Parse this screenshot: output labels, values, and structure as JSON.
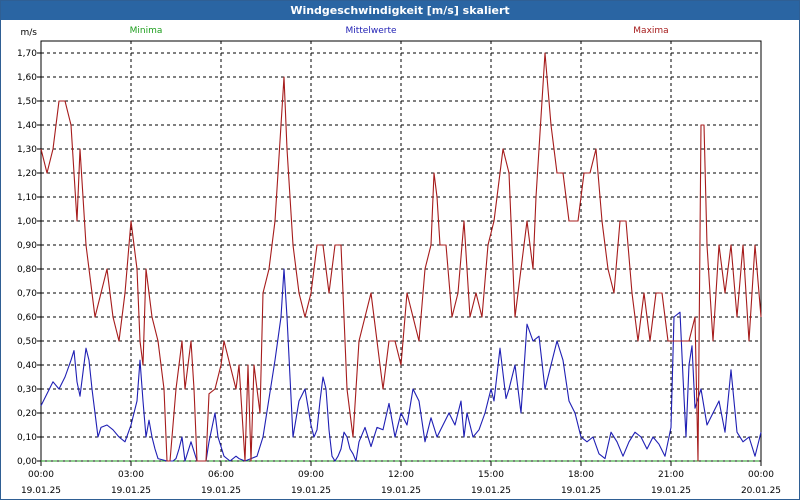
{
  "window": {
    "title": "Windgeschwindigkeit [m/s] skaliert"
  },
  "chart_data": {
    "type": "line",
    "title": "Windgeschwindigkeit [m/s] skaliert",
    "ylabel": "m/s",
    "ylim": [
      0,
      1.75
    ],
    "y_ticks": [
      "0,00",
      "0,10",
      "0,20",
      "0,30",
      "0,40",
      "0,50",
      "0,60",
      "0,70",
      "0,80",
      "0,90",
      "1,00",
      "1,10",
      "1,20",
      "1,30",
      "1,40",
      "1,50",
      "1,60",
      "1,70"
    ],
    "xlim_hours": [
      0,
      24
    ],
    "x_ticks": [
      {
        "time": "00:00",
        "date": "19.01.25"
      },
      {
        "time": "03:00",
        "date": "19.01.25"
      },
      {
        "time": "06:00",
        "date": "19.01.25"
      },
      {
        "time": "09:00",
        "date": "19.01.25"
      },
      {
        "time": "12:00",
        "date": "19.01.25"
      },
      {
        "time": "15:00",
        "date": "19.01.25"
      },
      {
        "time": "18:00",
        "date": "19.01.25"
      },
      {
        "time": "21:00",
        "date": "19.01.25"
      },
      {
        "time": "00:00",
        "date": "20.01.25"
      }
    ],
    "grid": true,
    "legend": "top",
    "series": [
      {
        "name": "Minima",
        "color": "#1e9e1e",
        "points": [
          [
            0,
            0
          ],
          [
            24,
            0
          ]
        ]
      },
      {
        "name": "Mittelwerte",
        "color": "#1f1fb4",
        "points": [
          [
            0,
            0.23
          ],
          [
            0.2,
            0.28
          ],
          [
            0.4,
            0.33
          ],
          [
            0.6,
            0.3
          ],
          [
            0.8,
            0.35
          ],
          [
            1.0,
            0.42
          ],
          [
            1.1,
            0.46
          ],
          [
            1.2,
            0.33
          ],
          [
            1.3,
            0.27
          ],
          [
            1.5,
            0.47
          ],
          [
            1.6,
            0.42
          ],
          [
            1.7,
            0.3
          ],
          [
            1.8,
            0.2
          ],
          [
            1.9,
            0.1
          ],
          [
            2.0,
            0.14
          ],
          [
            2.2,
            0.15
          ],
          [
            2.4,
            0.13
          ],
          [
            2.6,
            0.1
          ],
          [
            2.8,
            0.08
          ],
          [
            3.0,
            0.15
          ],
          [
            3.2,
            0.25
          ],
          [
            3.3,
            0.42
          ],
          [
            3.4,
            0.25
          ],
          [
            3.5,
            0.1
          ],
          [
            3.6,
            0.17
          ],
          [
            3.7,
            0.1
          ],
          [
            3.8,
            0.05
          ],
          [
            3.9,
            0.01
          ],
          [
            4.2,
            0.0
          ],
          [
            4.4,
            0.0
          ],
          [
            4.5,
            0.01
          ],
          [
            4.6,
            0.05
          ],
          [
            4.7,
            0.1
          ],
          [
            4.8,
            0.0
          ],
          [
            5.0,
            0.08
          ],
          [
            5.2,
            0.0
          ],
          [
            5.5,
            0.0
          ],
          [
            5.6,
            0.08
          ],
          [
            5.8,
            0.2
          ],
          [
            5.9,
            0.1
          ],
          [
            6.1,
            0.02
          ],
          [
            6.3,
            0.0
          ],
          [
            6.5,
            0.02
          ],
          [
            6.6,
            0.01
          ],
          [
            6.8,
            0.0
          ],
          [
            7.0,
            0.01
          ],
          [
            7.2,
            0.02
          ],
          [
            7.4,
            0.1
          ],
          [
            7.6,
            0.26
          ],
          [
            7.8,
            0.42
          ],
          [
            8.0,
            0.6
          ],
          [
            8.1,
            0.8
          ],
          [
            8.2,
            0.6
          ],
          [
            8.4,
            0.1
          ],
          [
            8.6,
            0.25
          ],
          [
            8.8,
            0.3
          ],
          [
            9.0,
            0.15
          ],
          [
            9.1,
            0.1
          ],
          [
            9.2,
            0.13
          ],
          [
            9.3,
            0.25
          ],
          [
            9.4,
            0.35
          ],
          [
            9.5,
            0.3
          ],
          [
            9.6,
            0.13
          ],
          [
            9.7,
            0.02
          ],
          [
            9.8,
            0.0
          ],
          [
            9.9,
            0.02
          ],
          [
            10.0,
            0.05
          ],
          [
            10.1,
            0.12
          ],
          [
            10.2,
            0.1
          ],
          [
            10.3,
            0.05
          ],
          [
            10.4,
            0.03
          ],
          [
            10.5,
            0.0
          ],
          [
            10.6,
            0.08
          ],
          [
            10.8,
            0.14
          ],
          [
            11.0,
            0.06
          ],
          [
            11.2,
            0.14
          ],
          [
            11.4,
            0.13
          ],
          [
            11.6,
            0.24
          ],
          [
            11.8,
            0.1
          ],
          [
            12.0,
            0.2
          ],
          [
            12.2,
            0.15
          ],
          [
            12.4,
            0.3
          ],
          [
            12.6,
            0.25
          ],
          [
            12.8,
            0.08
          ],
          [
            13.0,
            0.18
          ],
          [
            13.2,
            0.1
          ],
          [
            13.4,
            0.15
          ],
          [
            13.6,
            0.2
          ],
          [
            13.8,
            0.15
          ],
          [
            14.0,
            0.25
          ],
          [
            14.1,
            0.1
          ],
          [
            14.2,
            0.2
          ],
          [
            14.4,
            0.1
          ],
          [
            14.6,
            0.13
          ],
          [
            14.8,
            0.2
          ],
          [
            15.0,
            0.3
          ],
          [
            15.1,
            0.25
          ],
          [
            15.3,
            0.47
          ],
          [
            15.5,
            0.26
          ],
          [
            15.6,
            0.3
          ],
          [
            15.8,
            0.4
          ],
          [
            16.0,
            0.2
          ],
          [
            16.2,
            0.57
          ],
          [
            16.4,
            0.5
          ],
          [
            16.6,
            0.52
          ],
          [
            16.8,
            0.3
          ],
          [
            17.0,
            0.4
          ],
          [
            17.2,
            0.5
          ],
          [
            17.4,
            0.42
          ],
          [
            17.6,
            0.25
          ],
          [
            17.8,
            0.2
          ],
          [
            18.0,
            0.1
          ],
          [
            18.2,
            0.08
          ],
          [
            18.4,
            0.1
          ],
          [
            18.6,
            0.03
          ],
          [
            18.8,
            0.01
          ],
          [
            19.0,
            0.12
          ],
          [
            19.2,
            0.08
          ],
          [
            19.4,
            0.02
          ],
          [
            19.6,
            0.08
          ],
          [
            19.8,
            0.12
          ],
          [
            20.0,
            0.1
          ],
          [
            20.2,
            0.05
          ],
          [
            20.4,
            0.1
          ],
          [
            20.6,
            0.07
          ],
          [
            20.8,
            0.02
          ],
          [
            21.0,
            0.14
          ],
          [
            21.1,
            0.6
          ],
          [
            21.3,
            0.62
          ],
          [
            21.4,
            0.35
          ],
          [
            21.5,
            0.1
          ],
          [
            21.6,
            0.4
          ],
          [
            21.7,
            0.48
          ],
          [
            21.8,
            0.22
          ],
          [
            22.0,
            0.3
          ],
          [
            22.2,
            0.15
          ],
          [
            22.4,
            0.2
          ],
          [
            22.6,
            0.25
          ],
          [
            22.8,
            0.12
          ],
          [
            23.0,
            0.38
          ],
          [
            23.2,
            0.12
          ],
          [
            23.4,
            0.08
          ],
          [
            23.6,
            0.1
          ],
          [
            23.8,
            0.02
          ],
          [
            24.0,
            0.12
          ]
        ]
      },
      {
        "name": "Maxima",
        "color": "#a61c1c",
        "points": [
          [
            0,
            1.3
          ],
          [
            0.2,
            1.2
          ],
          [
            0.4,
            1.3
          ],
          [
            0.6,
            1.5
          ],
          [
            0.8,
            1.5
          ],
          [
            1.0,
            1.4
          ],
          [
            1.1,
            1.2
          ],
          [
            1.2,
            1.0
          ],
          [
            1.3,
            1.3
          ],
          [
            1.4,
            1.1
          ],
          [
            1.5,
            0.9
          ],
          [
            1.7,
            0.7
          ],
          [
            1.8,
            0.6
          ],
          [
            2.0,
            0.7
          ],
          [
            2.2,
            0.8
          ],
          [
            2.4,
            0.6
          ],
          [
            2.6,
            0.5
          ],
          [
            2.8,
            0.7
          ],
          [
            3.0,
            1.0
          ],
          [
            3.2,
            0.8
          ],
          [
            3.3,
            0.5
          ],
          [
            3.4,
            0.4
          ],
          [
            3.5,
            0.8
          ],
          [
            3.7,
            0.6
          ],
          [
            3.9,
            0.5
          ],
          [
            4.1,
            0.3
          ],
          [
            4.2,
            0.0
          ],
          [
            4.3,
            0.0
          ],
          [
            4.5,
            0.3
          ],
          [
            4.6,
            0.4
          ],
          [
            4.7,
            0.5
          ],
          [
            4.8,
            0.3
          ],
          [
            5.0,
            0.5
          ],
          [
            5.1,
            0.3
          ],
          [
            5.2,
            0.0
          ],
          [
            5.5,
            0.0
          ],
          [
            5.6,
            0.28
          ],
          [
            5.8,
            0.3
          ],
          [
            6.0,
            0.4
          ],
          [
            6.1,
            0.5
          ],
          [
            6.3,
            0.4
          ],
          [
            6.5,
            0.3
          ],
          [
            6.6,
            0.4
          ],
          [
            6.8,
            0.0
          ],
          [
            6.9,
            0.4
          ],
          [
            7.0,
            0.0
          ],
          [
            7.1,
            0.4
          ],
          [
            7.3,
            0.2
          ],
          [
            7.4,
            0.7
          ],
          [
            7.6,
            0.8
          ],
          [
            7.8,
            1.0
          ],
          [
            8.0,
            1.4
          ],
          [
            8.1,
            1.6
          ],
          [
            8.2,
            1.3
          ],
          [
            8.4,
            0.9
          ],
          [
            8.6,
            0.7
          ],
          [
            8.8,
            0.6
          ],
          [
            9.0,
            0.7
          ],
          [
            9.2,
            0.9
          ],
          [
            9.4,
            0.9
          ],
          [
            9.6,
            0.7
          ],
          [
            9.8,
            0.9
          ],
          [
            10.0,
            0.9
          ],
          [
            10.1,
            0.6
          ],
          [
            10.2,
            0.3
          ],
          [
            10.4,
            0.1
          ],
          [
            10.5,
            0.3
          ],
          [
            10.6,
            0.5
          ],
          [
            10.8,
            0.6
          ],
          [
            11.0,
            0.7
          ],
          [
            11.2,
            0.5
          ],
          [
            11.4,
            0.3
          ],
          [
            11.6,
            0.5
          ],
          [
            11.8,
            0.5
          ],
          [
            12.0,
            0.4
          ],
          [
            12.2,
            0.7
          ],
          [
            12.4,
            0.6
          ],
          [
            12.6,
            0.5
          ],
          [
            12.8,
            0.8
          ],
          [
            13.0,
            0.9
          ],
          [
            13.1,
            1.2
          ],
          [
            13.2,
            1.1
          ],
          [
            13.3,
            0.9
          ],
          [
            13.5,
            0.9
          ],
          [
            13.7,
            0.6
          ],
          [
            13.9,
            0.7
          ],
          [
            14.1,
            1.0
          ],
          [
            14.3,
            0.6
          ],
          [
            14.5,
            0.7
          ],
          [
            14.7,
            0.6
          ],
          [
            14.9,
            0.9
          ],
          [
            15.1,
            1.0
          ],
          [
            15.2,
            1.1
          ],
          [
            15.4,
            1.3
          ],
          [
            15.6,
            1.2
          ],
          [
            15.8,
            0.6
          ],
          [
            16.0,
            0.8
          ],
          [
            16.2,
            1.0
          ],
          [
            16.4,
            0.8
          ],
          [
            16.5,
            1.1
          ],
          [
            16.7,
            1.5
          ],
          [
            16.8,
            1.7
          ],
          [
            17.0,
            1.4
          ],
          [
            17.2,
            1.2
          ],
          [
            17.4,
            1.2
          ],
          [
            17.6,
            1.0
          ],
          [
            17.8,
            1.0
          ],
          [
            17.9,
            1.0
          ],
          [
            18.1,
            1.2
          ],
          [
            18.3,
            1.2
          ],
          [
            18.5,
            1.3
          ],
          [
            18.7,
            1.0
          ],
          [
            18.9,
            0.8
          ],
          [
            19.1,
            0.7
          ],
          [
            19.3,
            1.0
          ],
          [
            19.5,
            1.0
          ],
          [
            19.7,
            0.7
          ],
          [
            19.9,
            0.5
          ],
          [
            20.1,
            0.7
          ],
          [
            20.3,
            0.5
          ],
          [
            20.5,
            0.7
          ],
          [
            20.7,
            0.7
          ],
          [
            20.9,
            0.5
          ],
          [
            21.0,
            0.5
          ],
          [
            21.2,
            0.5
          ],
          [
            21.4,
            0.5
          ],
          [
            21.6,
            0.5
          ],
          [
            21.8,
            0.6
          ],
          [
            21.9,
            0.0
          ],
          [
            22.0,
            1.4
          ],
          [
            22.1,
            1.4
          ],
          [
            22.2,
            0.9
          ],
          [
            22.3,
            0.7
          ],
          [
            22.4,
            0.5
          ],
          [
            22.6,
            0.9
          ],
          [
            22.8,
            0.7
          ],
          [
            23.0,
            0.9
          ],
          [
            23.2,
            0.6
          ],
          [
            23.4,
            0.9
          ],
          [
            23.6,
            0.5
          ],
          [
            23.8,
            0.9
          ],
          [
            24.0,
            0.6
          ]
        ]
      }
    ]
  }
}
